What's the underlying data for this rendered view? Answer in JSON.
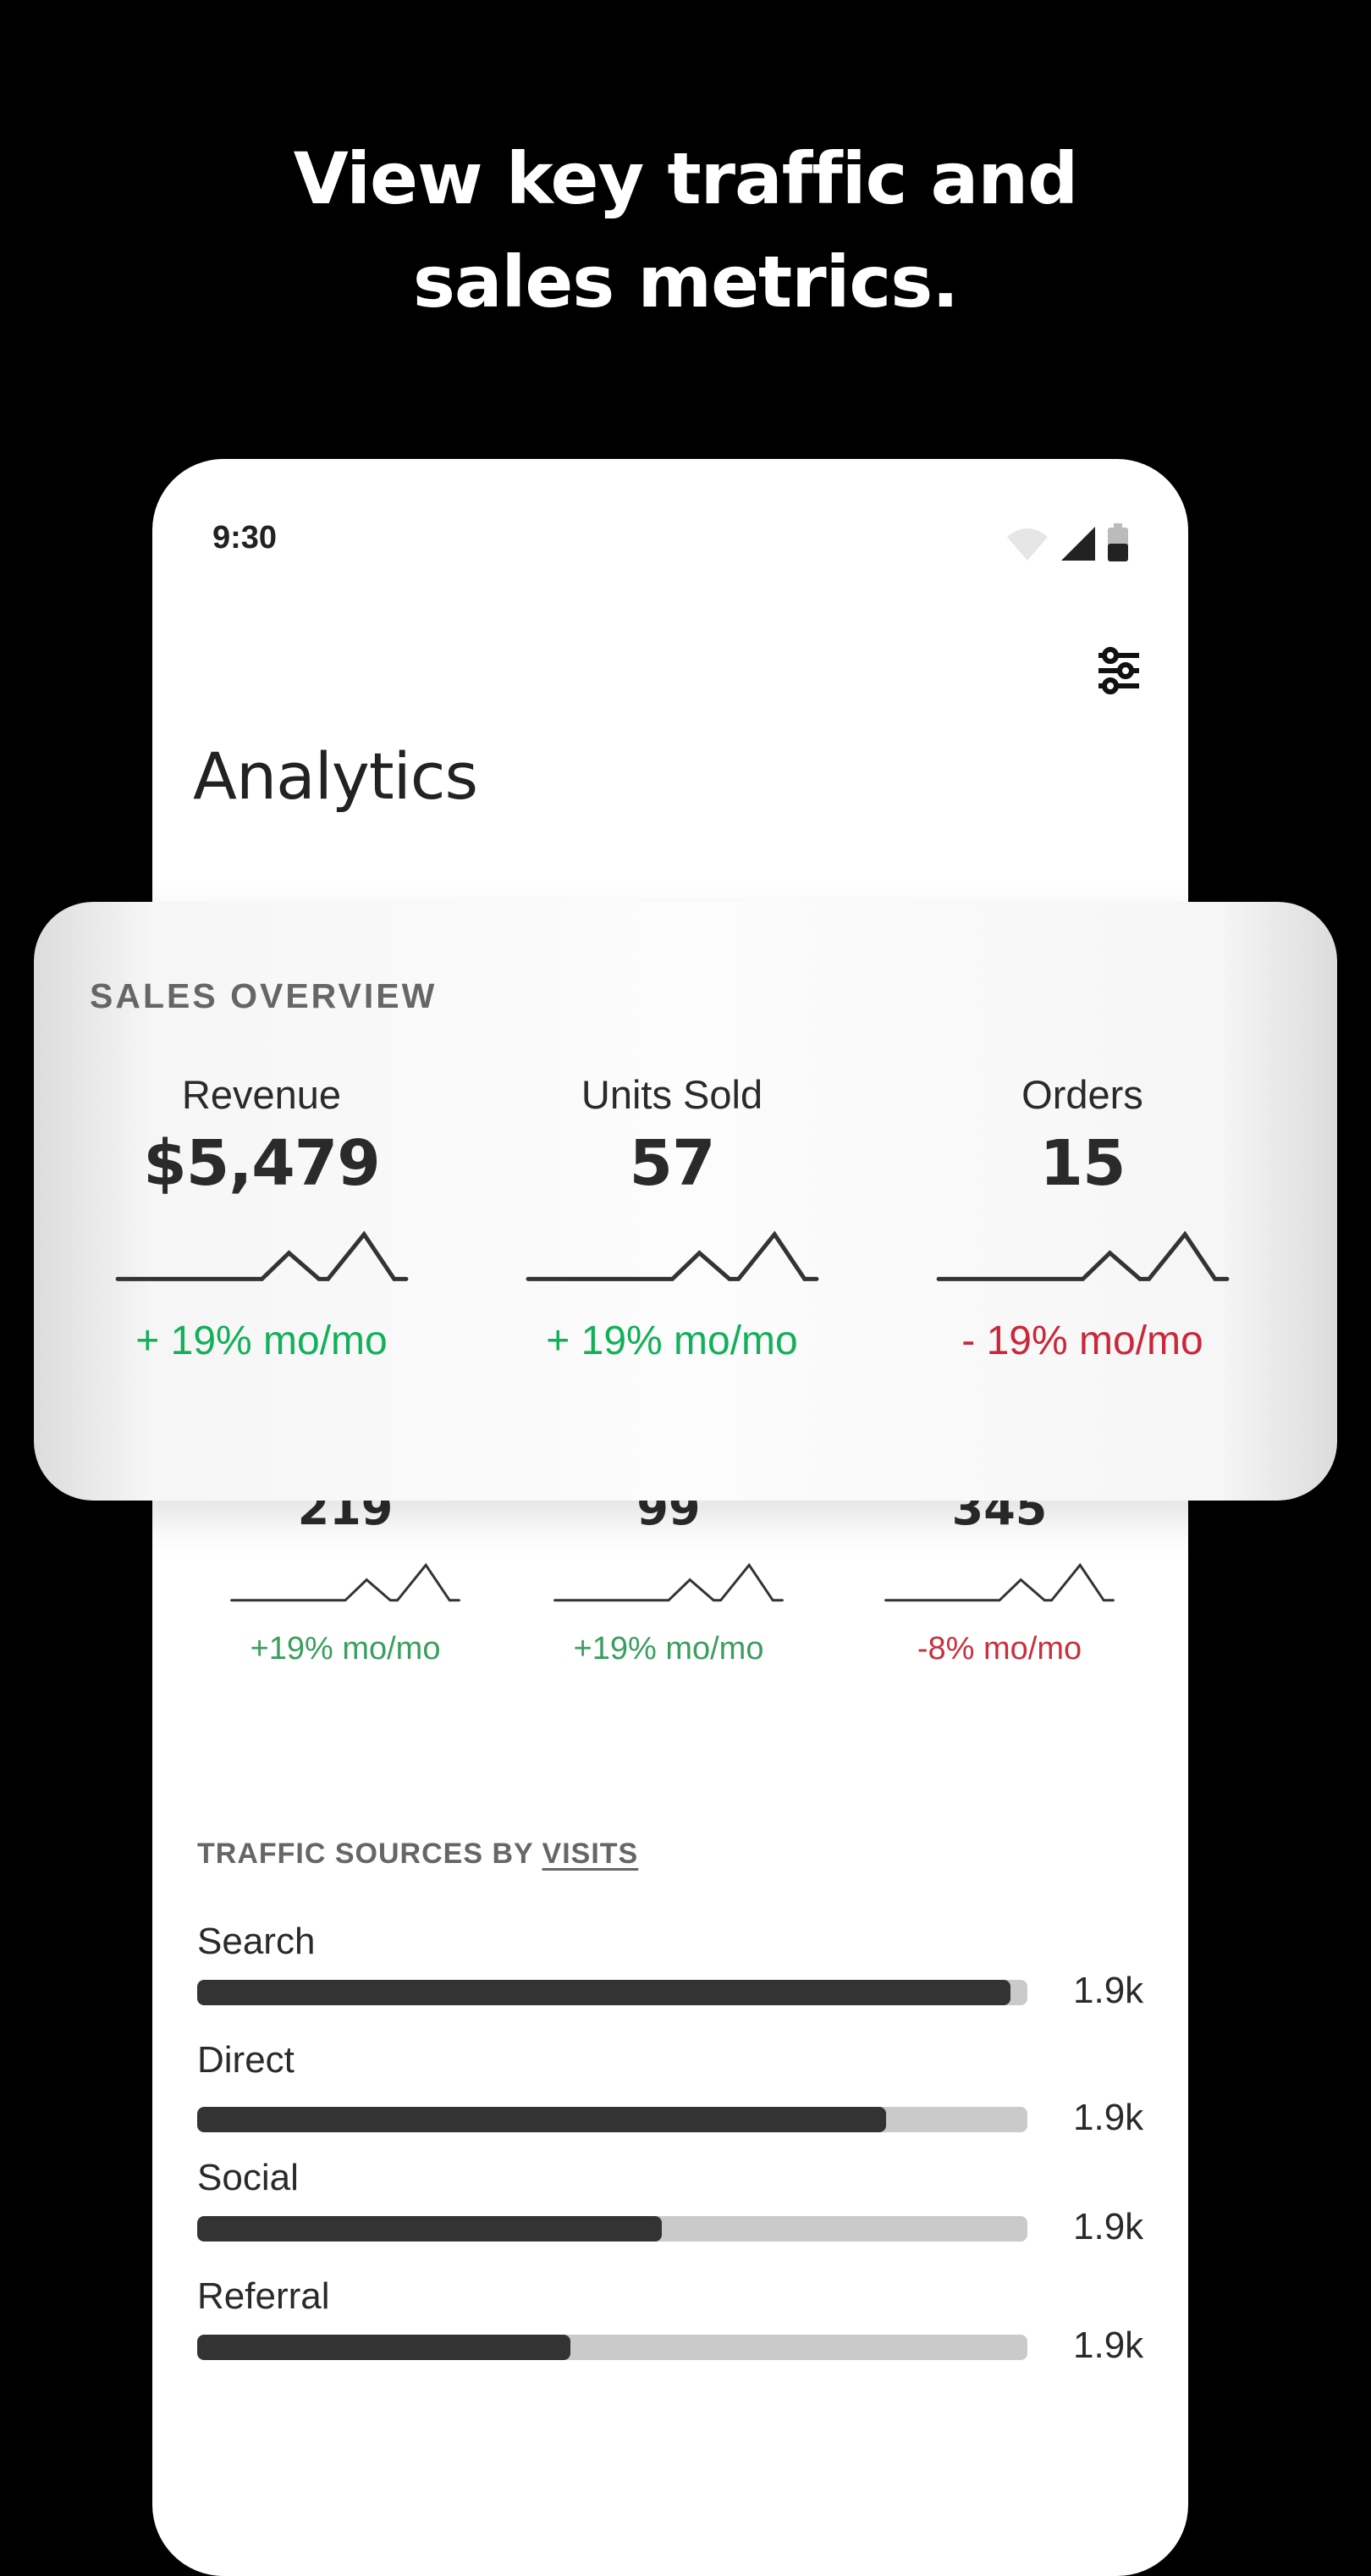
{
  "headline": {
    "line1": "View key traffic and",
    "line2": "sales metrics."
  },
  "status_bar": {
    "time": "9:30",
    "icons": [
      "wifi-icon",
      "signal-icon",
      "battery-icon"
    ]
  },
  "header": {
    "title": "Analytics",
    "filter_icon": "sliders-icon"
  },
  "sales_overview": {
    "title": "SALES OVERVIEW",
    "metrics": [
      {
        "label": "Revenue",
        "value": "$5,479",
        "change": "+ 19% mo/mo",
        "trend": "up"
      },
      {
        "label": "Units Sold",
        "value": "57",
        "change": "+ 19% mo/mo",
        "trend": "up"
      },
      {
        "label": "Orders",
        "value": "15",
        "change": "- 19% mo/mo",
        "trend": "down"
      }
    ]
  },
  "secondary_metrics": [
    {
      "value": "219",
      "change": "+19% mo/mo",
      "trend": "up"
    },
    {
      "value": "99",
      "change": "+19% mo/mo",
      "trend": "up"
    },
    {
      "value": "345",
      "change": "-8% mo/mo",
      "trend": "down"
    }
  ],
  "traffic_sources": {
    "title_prefix": "TRAFFIC SOURCES BY ",
    "title_metric": "VISITS",
    "sources": [
      {
        "label": "Search",
        "value": "1.9k",
        "fill_percent": 98
      },
      {
        "label": "Direct",
        "value": "1.9k",
        "fill_percent": 83
      },
      {
        "label": "Social",
        "value": "1.9k",
        "fill_percent": 56
      },
      {
        "label": "Referral",
        "value": "1.9k",
        "fill_percent": 45
      }
    ]
  },
  "colors": {
    "positive": "#12b05a",
    "negative": "#c8283a",
    "positive_muted": "#3a9e5e",
    "negative_muted": "#c8303c",
    "bar_fill": "#333333",
    "bar_track": "#cacaca"
  }
}
